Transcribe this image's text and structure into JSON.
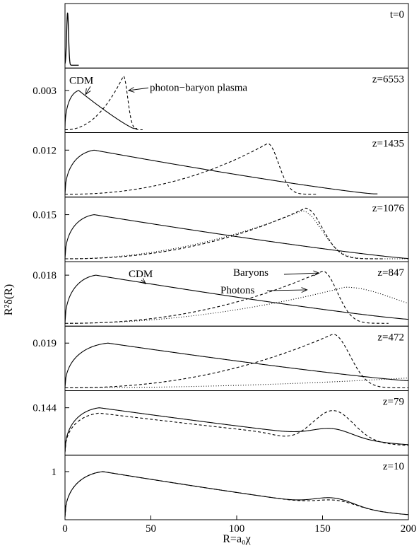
{
  "chart_data": {
    "type": "line",
    "xlabel": "R=a₀χ",
    "ylabel": "R²δ(R)",
    "xlim": [
      0,
      200
    ],
    "xticks": [
      "0",
      "50",
      "100",
      "150",
      "200"
    ],
    "xtick_values": [
      0,
      50,
      100,
      150,
      200
    ],
    "grid": false,
    "line_styles": {
      "cdm": "solid",
      "baryon": "dashed",
      "photon": "dotted"
    },
    "panels": [
      {
        "label": "t=0",
        "ytick": "",
        "yscale": 0.0035,
        "spike": {
          "x": 1.5,
          "width": 0.8,
          "height": 0.0031
        }
      },
      {
        "label": "z=6553",
        "ytick": "0.003",
        "ytick_value": 0.003,
        "yscale": 0.0045,
        "cdm": {
          "peak_x": 8,
          "peak": 0.003,
          "end_x": 40,
          "end_y": 0.0001
        },
        "baryon": {
          "peak_x": 34,
          "peak": 0.0041,
          "start_y": 0.0,
          "right_width": 3.5
        },
        "photon": null
      },
      {
        "label": "z=1435",
        "ytick": "0.012",
        "ytick_value": 0.012,
        "yscale": 0.016,
        "cdm": {
          "peak_x": 17,
          "peak": 0.012,
          "end_x": 180,
          "end_y": 0.0001
        },
        "baryon": {
          "peak_x": 118,
          "peak": 0.0138,
          "start_y": 0.0,
          "right_width": 9
        },
        "photon": null
      },
      {
        "label": "z=1076",
        "ytick": "0.015",
        "ytick_value": 0.015,
        "yscale": 0.02,
        "cdm": {
          "peak_x": 17,
          "peak": 0.015,
          "end_x": 200,
          "end_y": 0.0001
        },
        "baryon": {
          "peak_x": 140,
          "peak": 0.0172,
          "start_y": 0.0,
          "right_width": 14
        },
        "photon": {
          "peak_x": 138,
          "peak": 0.0163,
          "right_width": 16
        }
      },
      {
        "label": "z=847",
        "ytick": "0.018",
        "ytick_value": 0.018,
        "yscale": 0.022,
        "cdm": {
          "peak_x": 18,
          "peak": 0.018,
          "end_x": 200,
          "end_y": 0.0015
        },
        "baryon": {
          "peak_x": 150,
          "peak": 0.0195,
          "start_y": 0.0,
          "right_width": 12
        },
        "photon": {
          "peak_x": 163,
          "peak": 0.0135,
          "right_width": 40,
          "end_y": 0.003
        }
      },
      {
        "label": "z=472",
        "ytick": "0.019",
        "ytick_value": 0.019,
        "yscale": 0.025,
        "cdm": {
          "peak_x": 25,
          "peak": 0.019,
          "end_x": 200,
          "end_y": 0.003
        },
        "baryon": {
          "peak_x": 156,
          "peak": 0.0228,
          "start_y": 0.0,
          "right_width": 14
        },
        "photon": {
          "peak_x": 200,
          "peak": 0.0042,
          "right_width": 20,
          "end_y": 0.0042
        }
      },
      {
        "label": "z=79",
        "ytick": "0.144",
        "ytick_value": 0.144,
        "yscale": 0.19,
        "cdm": {
          "peak_x": 20,
          "peak": 0.144,
          "end_x": 200,
          "end_y": 0.025
        },
        "baryon": {
          "peak_x": 156,
          "peak": 0.135,
          "start_y": 0.0,
          "right_width": 16
        },
        "photon": null
      },
      {
        "label": "z=10",
        "ytick": "1",
        "ytick_value": 1,
        "yscale": 1.3,
        "cdm": {
          "peak_x": 22,
          "peak": 1.0,
          "end_x": 200,
          "end_y": 0.05
        },
        "baryon": {
          "peak_x": 157,
          "peak": 0.62,
          "start_y": 0.0,
          "right_width": 16
        },
        "photon": null
      }
    ],
    "annotations": [
      {
        "panel": 1,
        "text": "CDM",
        "target_x": 12,
        "target_y": 0.0027
      },
      {
        "panel": 1,
        "text": "photon−baryon plasma",
        "target_x": 37,
        "target_y": 0.003
      },
      {
        "panel": 4,
        "text": "CDM",
        "target_x": 47,
        "target_y": 0.0148
      },
      {
        "panel": 4,
        "text": "Baryons",
        "target_x": 148,
        "target_y": 0.0188
      },
      {
        "panel": 4,
        "text": "Photons",
        "target_x": 141,
        "target_y": 0.0125
      }
    ]
  }
}
